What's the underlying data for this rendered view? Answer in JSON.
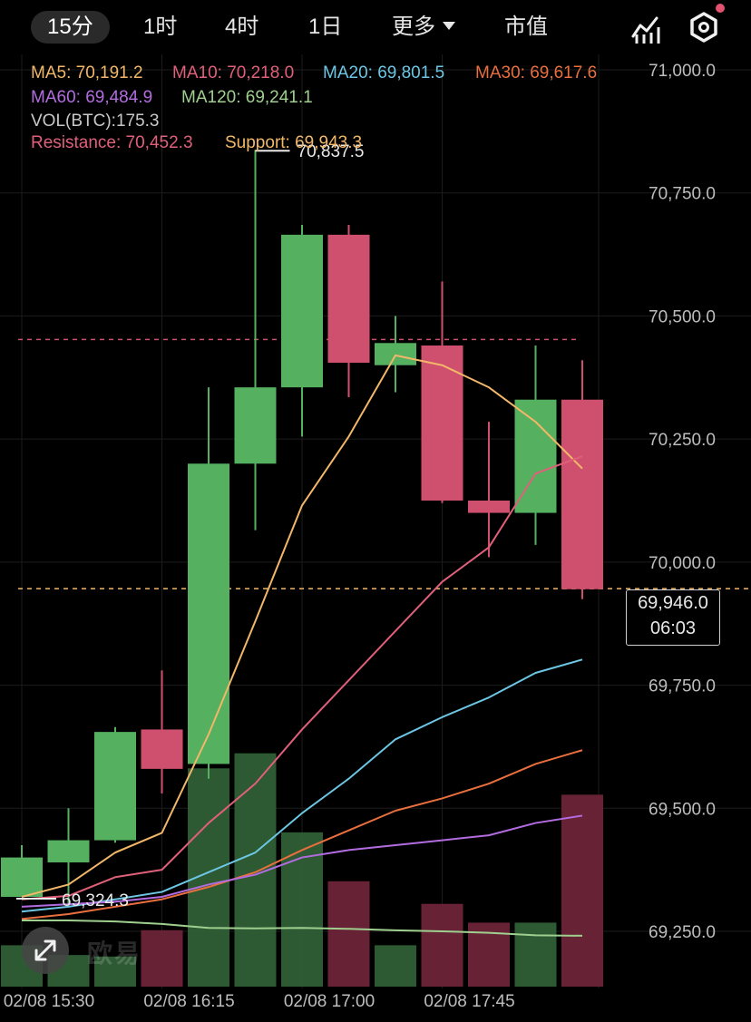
{
  "tabs": [
    {
      "label": "15分",
      "active": true
    },
    {
      "label": "1时"
    },
    {
      "label": "4时"
    },
    {
      "label": "1日"
    },
    {
      "label": "更多"
    },
    {
      "label": "市值"
    }
  ],
  "icons": {
    "indicator": "chart-line-icon",
    "settings": "hexagon-settings-icon",
    "notification_dot_color": "#e3526e"
  },
  "indicators": {
    "ma5": "MA5: 70,191.2",
    "ma10": "MA10: 70,218.0",
    "ma20": "MA20: 69,801.5",
    "ma30": "MA30: 69,617.6",
    "ma60": "MA60: 69,484.9",
    "ma120": "MA120: 69,241.1",
    "vol": "VOL(BTC):175.3",
    "resistance": "Resistance: 70,452.3",
    "support": "Support: 69,943.3"
  },
  "colors": {
    "up": "#55b060",
    "down": "#cf4f6e",
    "ma5": "#f2b769",
    "ma10": "#e0607a",
    "ma20": "#6cc6e4",
    "ma30": "#e96f3e",
    "ma60": "#b26ce0",
    "ma120": "#9fcf8f"
  },
  "price_label": {
    "price": "69,946.0",
    "countdown": "06:03"
  },
  "watermark": "欧易",
  "chart_data": {
    "type": "candlestick",
    "ylim": [
      69200,
      71000
    ],
    "y_ticks": [
      {
        "value": 71000,
        "label": "71,000.0"
      },
      {
        "value": 70750,
        "label": "70,750.0"
      },
      {
        "value": 70500,
        "label": "70,500.0"
      },
      {
        "value": 70250,
        "label": "70,250.0"
      },
      {
        "value": 70000,
        "label": "70,000.0"
      },
      {
        "value": 69750,
        "label": "69,750.0"
      },
      {
        "value": 69500,
        "label": "69,500.0"
      },
      {
        "value": 69250,
        "label": "69,250.0"
      }
    ],
    "x_ticks": [
      {
        "index": 0,
        "label": "02/08 15:30"
      },
      {
        "index": 3,
        "label": "02/08 16:15"
      },
      {
        "index": 6,
        "label": "02/08 17:00"
      },
      {
        "index": 9,
        "label": "02/08 17:45"
      }
    ],
    "candles": [
      {
        "o": 69320,
        "h": 69425,
        "l": 69320,
        "c": 69400,
        "vol": 55
      },
      {
        "o": 69390,
        "h": 69500,
        "l": 69300,
        "c": 69435,
        "vol": 42
      },
      {
        "o": 69435,
        "h": 69665,
        "l": 69430,
        "c": 69655,
        "vol": 40
      },
      {
        "o": 69660,
        "h": 69780,
        "l": 69530,
        "c": 69580,
        "vol": 75
      },
      {
        "o": 69590,
        "h": 70355,
        "l": 69560,
        "c": 70200,
        "vol": 290
      },
      {
        "o": 70200,
        "h": 70837.5,
        "l": 70065,
        "c": 70355,
        "vol": 310
      },
      {
        "o": 70355,
        "h": 70685,
        "l": 70255,
        "c": 70665,
        "vol": 205
      },
      {
        "o": 70665,
        "h": 70685,
        "l": 70335,
        "c": 70405,
        "vol": 140
      },
      {
        "o": 70400,
        "h": 70500,
        "l": 70345,
        "c": 70445,
        "vol": 55
      },
      {
        "o": 70440,
        "h": 70570,
        "l": 70120,
        "c": 70125,
        "vol": 110
      },
      {
        "o": 70125,
        "h": 70285,
        "l": 70010,
        "c": 70100,
        "vol": 85
      },
      {
        "o": 70100,
        "h": 70440,
        "l": 70035,
        "c": 70330,
        "vol": 85
      },
      {
        "o": 70330,
        "h": 70410,
        "l": 69925,
        "c": 69945,
        "vol": 255
      }
    ],
    "ma_lines": [
      {
        "name": "MA5",
        "color": "ma5",
        "values": [
          69320,
          69345,
          69410,
          69450,
          69650,
          69880,
          70115,
          70255,
          70420,
          70400,
          70355,
          70285,
          70190
        ]
      },
      {
        "name": "MA10",
        "color": "ma10",
        "values": [
          69315,
          69322,
          69360,
          69375,
          69470,
          69550,
          69660,
          69760,
          69860,
          69960,
          70030,
          70180,
          70215
        ]
      },
      {
        "name": "MA20",
        "color": "ma20",
        "values": [
          69290,
          69300,
          69315,
          69330,
          69370,
          69410,
          69490,
          69560,
          69640,
          69685,
          69725,
          69775,
          69802
        ]
      },
      {
        "name": "MA30",
        "color": "ma30",
        "values": [
          69275,
          69285,
          69300,
          69315,
          69340,
          69370,
          69415,
          69455,
          69495,
          69520,
          69550,
          69590,
          69618
        ]
      },
      {
        "name": "MA60",
        "color": "ma60",
        "values": [
          69300,
          69305,
          69310,
          69320,
          69345,
          69365,
          69400,
          69415,
          69425,
          69435,
          69445,
          69470,
          69485
        ]
      },
      {
        "name": "MA120",
        "color": "ma120",
        "values": [
          69272,
          69272,
          69270,
          69265,
          69257,
          69256,
          69257,
          69255,
          69252,
          69250,
          69247,
          69242,
          69241
        ]
      }
    ],
    "annotations": {
      "high_label": "70,837.5",
      "low_label": "69,324.3",
      "resistance": 70452.3,
      "support": 69943.3,
      "current_price": 69946.0
    }
  }
}
